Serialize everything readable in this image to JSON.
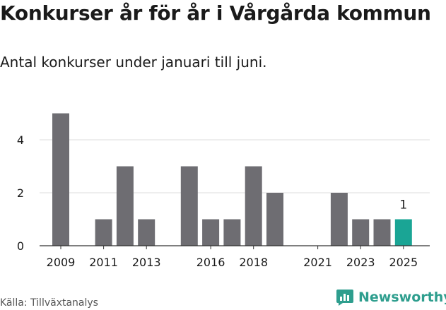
{
  "header": {
    "title": "Konkurser år för år i Vårgårda kommun",
    "subtitle": "Antal konkurser under januari till juni."
  },
  "footer": {
    "source": "Källa: Tillväxtanalys",
    "brand": "Newsworthy"
  },
  "colors": {
    "bar": "#6e6d72",
    "highlight": "#1aa595",
    "grid": "#dddddd",
    "axis": "#333333",
    "brand": "#2e9e8e"
  },
  "chart_data": {
    "type": "bar",
    "categories": [
      "2009",
      "2010",
      "2011",
      "2012",
      "2013",
      "2014",
      "2015",
      "2016",
      "2017",
      "2018",
      "2019",
      "2020",
      "2021",
      "2022",
      "2023",
      "2024",
      "2025"
    ],
    "values": [
      5,
      0,
      1,
      3,
      1,
      0,
      3,
      1,
      1,
      3,
      2,
      0,
      0,
      2,
      1,
      1,
      1
    ],
    "x_tick_labels": [
      "2009",
      "2011",
      "2013",
      "2016",
      "2018",
      "2021",
      "2023",
      "2025"
    ],
    "y_ticks": [
      0,
      2,
      4
    ],
    "ylim": [
      0,
      5.2
    ],
    "highlight_category": "2025",
    "data_labels": [
      {
        "category": "2025",
        "text": "1"
      }
    ],
    "title": "Konkurser år för år i Vårgårda kommun",
    "subtitle": "Antal konkurser under januari till juni.",
    "grid": true
  }
}
